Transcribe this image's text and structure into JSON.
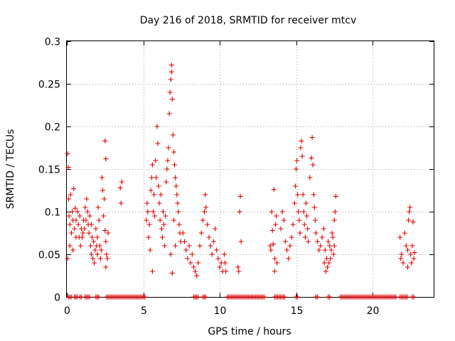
{
  "chart_data": {
    "type": "scatter",
    "title": "Day 216 of 2018, SRMTID for receiver mtcv",
    "xlabel": "GPS time / hours",
    "ylabel": "SRMTID / TECUs",
    "xlim": [
      0,
      24
    ],
    "ylim": [
      0,
      0.3
    ],
    "xticks": [
      0,
      5,
      10,
      15,
      20
    ],
    "xtick_labels": [
      "0",
      "5",
      "10",
      "15",
      "20"
    ],
    "yticks": [
      0,
      0.05,
      0.1,
      0.15,
      0.2,
      0.25,
      0.3
    ],
    "ytick_labels": [
      "0",
      "0.05",
      "0.1",
      "0.15",
      "0.2",
      "0.25",
      "0.3"
    ],
    "grid": true,
    "marker": "+",
    "color": "#e00000",
    "series": [
      {
        "name": "SRMTID",
        "points": [
          [
            0.05,
            0.168
          ],
          [
            0.1,
            0.152
          ],
          [
            0.05,
            0.045
          ],
          [
            0.12,
            0.115
          ],
          [
            0.15,
            0.095
          ],
          [
            0.2,
            0.085
          ],
          [
            0.2,
            0.06
          ],
          [
            0.25,
            0.12
          ],
          [
            0.3,
            0.075
          ],
          [
            0.35,
            0.1
          ],
          [
            0.4,
            0.09
          ],
          [
            0.4,
            0.055
          ],
          [
            0.45,
            0.127
          ],
          [
            0.5,
            0.08
          ],
          [
            0.55,
            0.104
          ],
          [
            0.6,
            0.07
          ],
          [
            0.6,
            0.09
          ],
          [
            0.7,
            0.1
          ],
          [
            0.75,
            0.085
          ],
          [
            0.8,
            0.07
          ],
          [
            0.85,
            0.095
          ],
          [
            0.9,
            0.06
          ],
          [
            0.95,
            0.08
          ],
          [
            1.0,
            0.07
          ],
          [
            1.05,
            0.075
          ],
          [
            1.1,
            0.09
          ],
          [
            1.15,
            0.08
          ],
          [
            1.2,
            0.105
          ],
          [
            1.25,
            0.09
          ],
          [
            1.3,
            0.115
          ],
          [
            1.35,
            0.1
          ],
          [
            1.4,
            0.085
          ],
          [
            1.45,
            0.075
          ],
          [
            1.5,
            0.095
          ],
          [
            1.55,
            0.06
          ],
          [
            1.6,
            0.05
          ],
          [
            1.6,
            0.085
          ],
          [
            1.65,
            0.07
          ],
          [
            1.7,
            0.045
          ],
          [
            1.75,
            0.065
          ],
          [
            1.8,
            0.04
          ],
          [
            1.85,
            0.055
          ],
          [
            1.9,
            0.08
          ],
          [
            1.95,
            0.06
          ],
          [
            2.0,
            0.07
          ],
          [
            2.0,
            0.05
          ],
          [
            2.05,
            0.105
          ],
          [
            2.1,
            0.09
          ],
          [
            2.15,
            0.06
          ],
          [
            2.2,
            0.045
          ],
          [
            2.25,
            0.055
          ],
          [
            2.3,
            0.14
          ],
          [
            2.35,
            0.125
          ],
          [
            2.4,
            0.095
          ],
          [
            2.45,
            0.115
          ],
          [
            2.5,
            0.183
          ],
          [
            2.55,
            0.162
          ],
          [
            2.5,
            0.078
          ],
          [
            2.55,
            0.065
          ],
          [
            2.6,
            0.05
          ],
          [
            2.65,
            0.045
          ],
          [
            2.55,
            0.035
          ],
          [
            2.7,
            0.075
          ],
          [
            3.5,
            0.128
          ],
          [
            3.55,
            0.11
          ],
          [
            3.6,
            0.135
          ],
          [
            5.2,
            0.09
          ],
          [
            5.25,
            0.11
          ],
          [
            5.3,
            0.1
          ],
          [
            5.35,
            0.07
          ],
          [
            5.4,
            0.085
          ],
          [
            5.45,
            0.055
          ],
          [
            5.5,
            0.125
          ],
          [
            5.55,
            0.14
          ],
          [
            5.6,
            0.155
          ],
          [
            5.65,
            0.1
          ],
          [
            5.7,
            0.12
          ],
          [
            5.75,
            0.095
          ],
          [
            5.8,
            0.16
          ],
          [
            5.85,
            0.14
          ],
          [
            5.9,
            0.2
          ],
          [
            5.95,
            0.18
          ],
          [
            6.0,
            0.13
          ],
          [
            6.05,
            0.11
          ],
          [
            6.1,
            0.09
          ],
          [
            6.15,
            0.12
          ],
          [
            6.2,
            0.08
          ],
          [
            6.25,
            0.07
          ],
          [
            6.3,
            0.1
          ],
          [
            6.35,
            0.085
          ],
          [
            6.4,
            0.06
          ],
          [
            6.45,
            0.095
          ],
          [
            6.5,
            0.135
          ],
          [
            6.55,
            0.15
          ],
          [
            6.6,
            0.16
          ],
          [
            6.65,
            0.175
          ],
          [
            6.7,
            0.215
          ],
          [
            6.75,
            0.24
          ],
          [
            6.8,
            0.255
          ],
          [
            6.85,
            0.272
          ],
          [
            6.85,
            0.264
          ],
          [
            6.9,
            0.232
          ],
          [
            6.95,
            0.19
          ],
          [
            7.0,
            0.17
          ],
          [
            7.05,
            0.155
          ],
          [
            7.1,
            0.14
          ],
          [
            7.15,
            0.13
          ],
          [
            7.2,
            0.12
          ],
          [
            7.25,
            0.11
          ],
          [
            7.3,
            0.1
          ],
          [
            7.35,
            0.085
          ],
          [
            7.4,
            0.075
          ],
          [
            7.45,
            0.065
          ],
          [
            7.0,
            0.09
          ],
          [
            6.8,
            0.05
          ],
          [
            5.6,
            0.03
          ],
          [
            6.9,
            0.028
          ],
          [
            7.1,
            0.06
          ],
          [
            7.6,
            0.075
          ],
          [
            7.7,
            0.065
          ],
          [
            7.8,
            0.055
          ],
          [
            7.9,
            0.045
          ],
          [
            8.0,
            0.06
          ],
          [
            8.1,
            0.04
          ],
          [
            8.2,
            0.05
          ],
          [
            8.3,
            0.035
          ],
          [
            8.4,
            0.03
          ],
          [
            8.5,
            0.025
          ],
          [
            8.6,
            0.04
          ],
          [
            8.7,
            0.06
          ],
          [
            8.8,
            0.075
          ],
          [
            8.9,
            0.09
          ],
          [
            9.0,
            0.1
          ],
          [
            9.05,
            0.12
          ],
          [
            9.1,
            0.105
          ],
          [
            9.2,
            0.085
          ],
          [
            9.3,
            0.07
          ],
          [
            9.4,
            0.06
          ],
          [
            9.5,
            0.05
          ],
          [
            9.6,
            0.065
          ],
          [
            9.7,
            0.08
          ],
          [
            9.8,
            0.055
          ],
          [
            9.9,
            0.045
          ],
          [
            10.0,
            0.035
          ],
          [
            10.1,
            0.04
          ],
          [
            10.2,
            0.03
          ],
          [
            10.3,
            0.05
          ],
          [
            10.35,
            0.04
          ],
          [
            10.4,
            0.03
          ],
          [
            11.2,
            0.035
          ],
          [
            11.25,
            0.03
          ],
          [
            11.3,
            0.1
          ],
          [
            11.35,
            0.118
          ],
          [
            11.4,
            0.065
          ],
          [
            13.3,
            0.06
          ],
          [
            13.35,
            0.055
          ],
          [
            13.4,
            0.1
          ],
          [
            13.45,
            0.078
          ],
          [
            13.5,
            0.062
          ],
          [
            13.55,
            0.126
          ],
          [
            13.6,
            0.045
          ],
          [
            13.65,
            0.085
          ],
          [
            13.7,
            0.095
          ],
          [
            13.75,
            0.04
          ],
          [
            13.6,
            0.03
          ],
          [
            14.0,
            0.08
          ],
          [
            14.1,
            0.1
          ],
          [
            14.2,
            0.09
          ],
          [
            14.3,
            0.065
          ],
          [
            14.4,
            0.055
          ],
          [
            14.5,
            0.045
          ],
          [
            14.6,
            0.06
          ],
          [
            14.7,
            0.07
          ],
          [
            14.8,
            0.085
          ],
          [
            14.9,
            0.11
          ],
          [
            14.95,
            0.13
          ],
          [
            15.0,
            0.15
          ],
          [
            15.05,
            0.16
          ],
          [
            15.1,
            0.12
          ],
          [
            15.15,
            0.1
          ],
          [
            15.2,
            0.09
          ],
          [
            15.25,
            0.075
          ],
          [
            15.3,
            0.175
          ],
          [
            15.35,
            0.183
          ],
          [
            15.4,
            0.165
          ],
          [
            15.45,
            0.12
          ],
          [
            15.5,
            0.1
          ],
          [
            15.55,
            0.085
          ],
          [
            15.6,
            0.07
          ],
          [
            15.65,
            0.11
          ],
          [
            15.7,
            0.095
          ],
          [
            15.75,
            0.08
          ],
          [
            15.8,
            0.065
          ],
          [
            15.9,
            0.14
          ],
          [
            16.0,
            0.163
          ],
          [
            16.05,
            0.187
          ],
          [
            16.1,
            0.155
          ],
          [
            16.15,
            0.12
          ],
          [
            16.2,
            0.105
          ],
          [
            16.25,
            0.09
          ],
          [
            16.3,
            0.075
          ],
          [
            16.4,
            0.065
          ],
          [
            16.5,
            0.055
          ],
          [
            16.6,
            0.06
          ],
          [
            16.7,
            0.07
          ],
          [
            16.8,
            0.08
          ],
          [
            16.9,
            0.055
          ],
          [
            17.0,
            0.045
          ],
          [
            17.1,
            0.065
          ],
          [
            17.2,
            0.06
          ],
          [
            17.3,
            0.055
          ],
          [
            17.4,
            0.07
          ],
          [
            17.5,
            0.09
          ],
          [
            17.6,
            0.118
          ],
          [
            17.55,
            0.1
          ],
          [
            17.5,
            0.06
          ],
          [
            17.45,
            0.05
          ],
          [
            17.35,
            0.075
          ],
          [
            17.25,
            0.045
          ],
          [
            17.15,
            0.04
          ],
          [
            17.05,
            0.035
          ],
          [
            16.95,
            0.03
          ],
          [
            16.85,
            0.04
          ],
          [
            21.8,
            0.07
          ],
          [
            21.85,
            0.045
          ],
          [
            21.9,
            0.05
          ],
          [
            22.0,
            0.04
          ],
          [
            22.1,
            0.075
          ],
          [
            22.2,
            0.06
          ],
          [
            22.3,
            0.055
          ],
          [
            22.35,
            0.09
          ],
          [
            22.4,
            0.1
          ],
          [
            22.45,
            0.105
          ],
          [
            22.5,
            0.05
          ],
          [
            22.55,
            0.04
          ],
          [
            22.6,
            0.06
          ],
          [
            22.65,
            0.088
          ],
          [
            22.7,
            0.045
          ],
          [
            22.75,
            0.052
          ],
          [
            22.3,
            0.035
          ]
        ]
      }
    ],
    "zero_ranges": [
      [
        0.1,
        0.3
      ],
      [
        0.5,
        0.7
      ],
      [
        0.85,
        1.0
      ],
      [
        1.2,
        1.5
      ],
      [
        1.9,
        2.1
      ],
      [
        2.6,
        5.2
      ],
      [
        8.3,
        8.6
      ],
      [
        8.9,
        9.1
      ],
      [
        10.5,
        13.0
      ],
      [
        13.6,
        14.3
      ],
      [
        15.0,
        15.1
      ],
      [
        16.3,
        16.4
      ],
      [
        17.1,
        17.2
      ],
      [
        17.9,
        21.6
      ],
      [
        21.8,
        22.3
      ],
      [
        22.6,
        22.7
      ]
    ]
  }
}
